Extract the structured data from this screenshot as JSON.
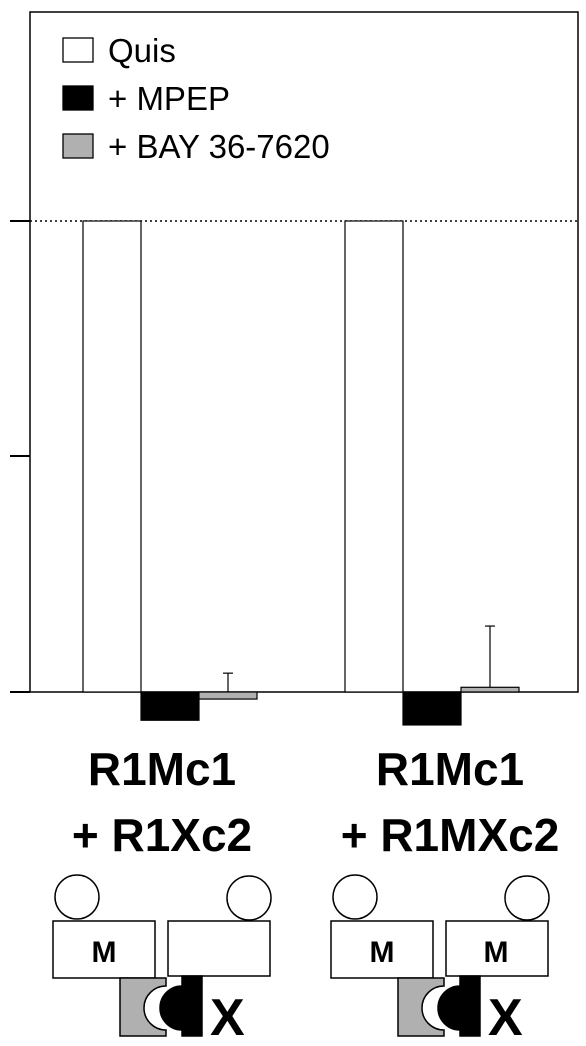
{
  "chart_data": {
    "type": "bar",
    "categories": [
      "R1Mc1 + R1Xc2",
      "R1Mc1 + R1MXc2"
    ],
    "category_lines": [
      [
        "R1Mc1",
        "+ R1Xc2"
      ],
      [
        "R1Mc1",
        "+ R1MXc2"
      ]
    ],
    "series": [
      {
        "name": "Quis",
        "values": [
          100,
          100
        ],
        "errors": [
          0,
          0
        ],
        "color": "#ffffff"
      },
      {
        "name": "+ MPEP",
        "values": [
          -6,
          -7
        ],
        "errors": [
          0,
          0
        ],
        "color": "#000000"
      },
      {
        "name": "+ BAY 36-7620",
        "values": [
          -1.5,
          1
        ],
        "errors": [
          4,
          13
        ],
        "color": "#b0b0b0"
      }
    ],
    "ylim": [
      -5,
      100
    ],
    "reference_line": 100,
    "grid": false,
    "legend": "top-left",
    "title": "",
    "xlabel": "",
    "ylabel": ""
  },
  "schematics": [
    {
      "left_domain": "M",
      "right_domain": "",
      "right_tail": "X"
    },
    {
      "left_domain": "M",
      "right_domain": "M",
      "right_tail": "X"
    }
  ]
}
